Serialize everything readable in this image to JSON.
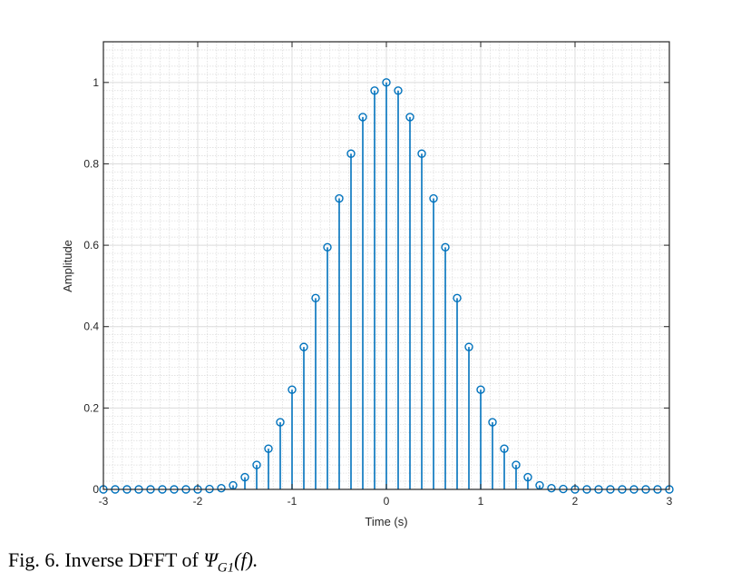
{
  "chart_data": {
    "type": "stem",
    "title": "",
    "xlabel": "Time (s)",
    "ylabel": "Amplitude",
    "xlim": [
      -3,
      3
    ],
    "ylim": [
      0,
      1.1
    ],
    "grid": true,
    "minor_grid": true,
    "legend": null,
    "xticks": [
      -3,
      -2,
      -1,
      0,
      1,
      2,
      3
    ],
    "xtick_labels": [
      "-3",
      "-2",
      "-1",
      "0",
      "1",
      "2",
      "3"
    ],
    "yticks": [
      0,
      0.2,
      0.4,
      0.6,
      0.8,
      1
    ],
    "ytick_labels": [
      "0",
      "0.2",
      "0.4",
      "0.6",
      "0.8",
      "1"
    ],
    "series_color": "#0072BD",
    "x": [
      -3,
      -2.875,
      -2.75,
      -2.625,
      -2.5,
      -2.375,
      -2.25,
      -2.125,
      -2,
      -1.875,
      -1.75,
      -1.625,
      -1.5,
      -1.375,
      -1.25,
      -1.125,
      -1,
      -0.875,
      -0.75,
      -0.625,
      -0.5,
      -0.375,
      -0.25,
      -0.125,
      0,
      0.125,
      0.25,
      0.375,
      0.5,
      0.625,
      0.75,
      0.875,
      1,
      1.125,
      1.25,
      1.375,
      1.5,
      1.625,
      1.75,
      1.875,
      2,
      2.125,
      2.25,
      2.375,
      2.5,
      2.625,
      2.75,
      2.875,
      3
    ],
    "values": [
      0,
      0,
      0,
      0,
      0,
      0,
      0,
      0,
      0,
      0.001,
      0.003,
      0.01,
      0.03,
      0.06,
      0.1,
      0.165,
      0.245,
      0.35,
      0.47,
      0.595,
      0.715,
      0.825,
      0.915,
      0.98,
      1.0,
      0.98,
      0.915,
      0.825,
      0.715,
      0.595,
      0.47,
      0.35,
      0.245,
      0.165,
      0.1,
      0.06,
      0.03,
      0.01,
      0.003,
      0.001,
      0,
      0,
      0,
      0,
      0,
      0,
      0,
      0,
      0
    ]
  },
  "caption": {
    "prefix": "Fig.  6. Inverse DFFT of ",
    "symbol": "Ψ",
    "subscript": "G1",
    "suffix": "(f)."
  }
}
